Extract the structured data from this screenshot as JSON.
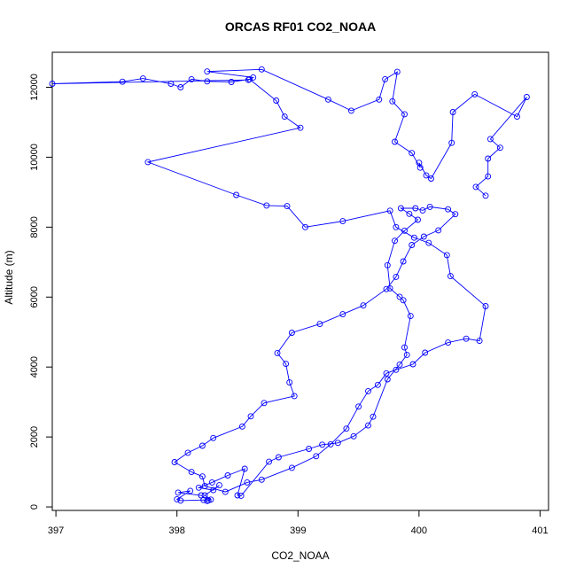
{
  "chart_data": {
    "type": "line",
    "title": "ORCAS RF01 CO2_NOAA",
    "xlabel": "CO2_NOAA",
    "ylabel": "Altitude (m)",
    "xlim": [
      396.97,
      401.07
    ],
    "ylim": [
      -100,
      13000
    ],
    "xticks": [
      "397",
      "398",
      "399",
      "400",
      "401"
    ],
    "yticks": [
      "0",
      "2000",
      "4000",
      "6000",
      "8000",
      "10000",
      "12000"
    ],
    "grid": false,
    "legend": "none",
    "color": "#0000ff",
    "marker": "open-circle",
    "series": [
      {
        "values": [
          [
            398.26,
            190
          ],
          [
            398.2,
            330
          ],
          [
            398.01,
            410
          ],
          [
            398.11,
            460
          ],
          [
            398.0,
            220
          ],
          [
            398.03,
            180
          ],
          [
            398.22,
            200
          ],
          [
            398.25,
            170
          ],
          [
            398.28,
            210
          ],
          [
            398.23,
            330
          ],
          [
            398.35,
            620
          ],
          [
            398.3,
            480
          ],
          [
            398.18,
            550
          ],
          [
            398.29,
            700
          ],
          [
            398.42,
            900
          ],
          [
            398.56,
            1090
          ],
          [
            398.5,
            330
          ],
          [
            398.53,
            320
          ],
          [
            398.76,
            1290
          ],
          [
            398.84,
            1420
          ],
          [
            399.09,
            1660
          ],
          [
            399.2,
            1780
          ],
          [
            399.33,
            1830
          ],
          [
            399.46,
            2020
          ],
          [
            399.58,
            2330
          ],
          [
            399.62,
            2580
          ],
          [
            399.74,
            3650
          ],
          [
            399.84,
            4070
          ],
          [
            399.9,
            4350
          ],
          [
            399.88,
            4560
          ],
          [
            399.93,
            5460
          ],
          [
            399.87,
            5910
          ],
          [
            399.84,
            6010
          ],
          [
            399.76,
            6250
          ],
          [
            399.74,
            6910
          ],
          [
            399.8,
            7610
          ],
          [
            399.88,
            7900
          ],
          [
            399.99,
            8210
          ],
          [
            399.92,
            8380
          ],
          [
            399.85,
            8540
          ],
          [
            399.97,
            8540
          ],
          [
            400.03,
            8480
          ],
          [
            400.09,
            8580
          ],
          [
            400.24,
            8510
          ],
          [
            400.3,
            8370
          ],
          [
            400.16,
            7910
          ],
          [
            400.04,
            7730
          ],
          [
            399.94,
            7490
          ],
          [
            399.87,
            7020
          ],
          [
            399.81,
            6580
          ],
          [
            399.73,
            6230
          ],
          [
            399.54,
            5760
          ],
          [
            399.37,
            5510
          ],
          [
            399.18,
            5230
          ],
          [
            398.95,
            4980
          ],
          [
            398.83,
            4400
          ],
          [
            398.9,
            4090
          ],
          [
            398.93,
            3560
          ],
          [
            398.97,
            3170
          ],
          [
            398.72,
            2970
          ],
          [
            398.61,
            2590
          ],
          [
            398.54,
            2300
          ],
          [
            398.3,
            1970
          ],
          [
            398.21,
            1750
          ],
          [
            398.09,
            1550
          ],
          [
            397.98,
            1280
          ],
          [
            398.12,
            1000
          ],
          [
            398.21,
            870
          ],
          [
            398.23,
            600
          ],
          [
            398.4,
            430
          ],
          [
            398.58,
            700
          ],
          [
            398.7,
            780
          ],
          [
            398.95,
            1120
          ],
          [
            399.15,
            1450
          ],
          [
            399.27,
            1790
          ],
          [
            399.4,
            2240
          ],
          [
            399.5,
            2870
          ],
          [
            399.58,
            3310
          ],
          [
            399.66,
            3490
          ],
          [
            399.73,
            3820
          ],
          [
            399.81,
            3920
          ],
          [
            399.95,
            4080
          ],
          [
            400.05,
            4410
          ],
          [
            400.24,
            4700
          ],
          [
            400.39,
            4810
          ],
          [
            400.5,
            4750
          ],
          [
            400.55,
            5740
          ],
          [
            400.26,
            6600
          ],
          [
            400.23,
            7200
          ],
          [
            400.08,
            7550
          ],
          [
            399.96,
            7700
          ],
          [
            399.81,
            8000
          ],
          [
            399.76,
            8470
          ],
          [
            399.37,
            8170
          ],
          [
            399.06,
            8000
          ],
          [
            398.91,
            8600
          ],
          [
            398.74,
            8620
          ],
          [
            398.49,
            8920
          ],
          [
            397.76,
            9860
          ],
          [
            399.02,
            10840
          ],
          [
            398.89,
            11160
          ],
          [
            398.82,
            11620
          ],
          [
            398.6,
            12230
          ],
          [
            398.45,
            12150
          ],
          [
            398.25,
            12170
          ],
          [
            398.12,
            12230
          ],
          [
            398.03,
            12000
          ],
          [
            397.95,
            12100
          ],
          [
            397.72,
            12250
          ],
          [
            397.55,
            12160
          ],
          [
            396.97,
            12100
          ],
          [
            398.59,
            12210
          ],
          [
            398.63,
            12280
          ],
          [
            398.25,
            12450
          ],
          [
            398.7,
            12510
          ],
          [
            399.25,
            11650
          ],
          [
            399.44,
            11330
          ],
          [
            399.67,
            11650
          ],
          [
            399.72,
            12230
          ],
          [
            399.82,
            12440
          ],
          [
            399.78,
            11600
          ],
          [
            399.88,
            11230
          ],
          [
            399.8,
            10440
          ],
          [
            399.94,
            10120
          ],
          [
            400.01,
            9700
          ],
          [
            400.0,
            9840
          ],
          [
            400.06,
            9480
          ],
          [
            400.1,
            9390
          ],
          [
            400.27,
            10410
          ],
          [
            400.28,
            11290
          ],
          [
            400.46,
            11800
          ],
          [
            400.81,
            11160
          ],
          [
            400.89,
            11720
          ],
          [
            400.59,
            10520
          ],
          [
            400.67,
            10270
          ],
          [
            400.57,
            9960
          ],
          [
            400.57,
            9450
          ],
          [
            400.47,
            9150
          ],
          [
            400.55,
            8900
          ]
        ]
      }
    ]
  }
}
